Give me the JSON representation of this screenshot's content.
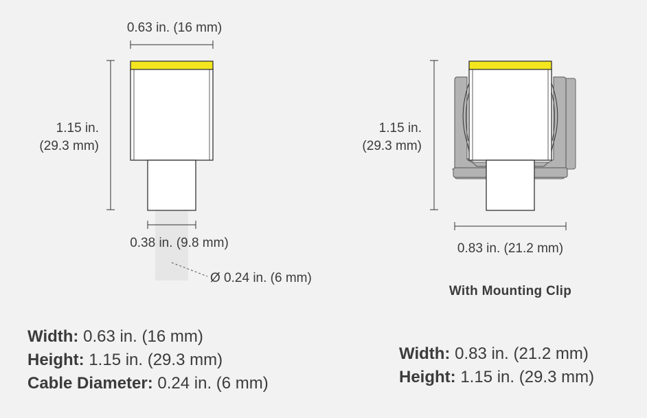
{
  "left_view": {
    "width_label": "0.63 in. (16 mm)",
    "height_label_line1": "1.15 in.",
    "height_label_line2": "(29.3 mm)",
    "neck_width_label": "0.38 in. (9.8 mm)",
    "cable_label": "Ø 0.24 in. (6 mm)"
  },
  "right_view": {
    "height_label_line1": "1.15 in.",
    "height_label_line2": "(29.3 mm)",
    "width_label": "0.83 in. (21.2 mm)",
    "caption": "With Mounting Clip"
  },
  "specs_left": [
    {
      "key": "Width:",
      "value": " 0.63 in. (16 mm)"
    },
    {
      "key": "Height:",
      "value": " 1.15 in. (29.3 mm)"
    },
    {
      "key": "Cable Diameter:",
      "value": " 0.24 in. (6 mm)"
    }
  ],
  "specs_right": [
    {
      "key": "Width:",
      "value": " 0.83 in. (21.2 mm)"
    },
    {
      "key": "Height:",
      "value": " 1.15 in. (29.3 mm)"
    }
  ],
  "colors": {
    "background": "#f2f2f2",
    "yellow_cap": "#f3e61f",
    "outline": "#333333",
    "cable": "#e6e6e6",
    "clip": "#b3b3b3"
  }
}
